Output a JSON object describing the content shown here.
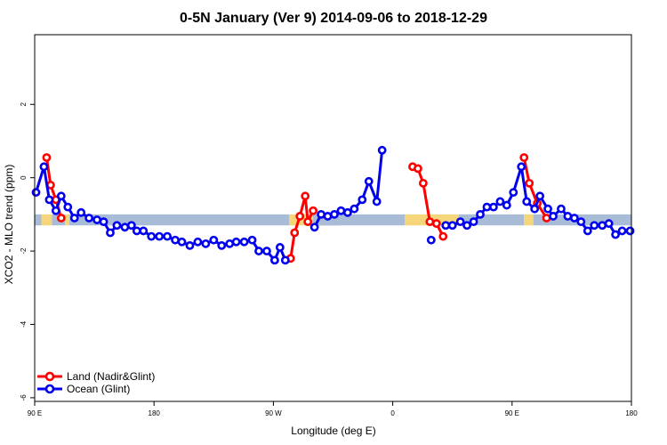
{
  "chart_data": {
    "type": "line",
    "title": "0-5N January (Ver 9)   2014-09-06 to 2018-12-29",
    "xlabel": "Longitude (deg E)",
    "ylabel": "XCO2 - MLO trend (ppm)",
    "xlim": [
      90,
      540
    ],
    "ylim": [
      -6.1,
      3.9
    ],
    "x_ticks": [
      {
        "value": 90,
        "label": "90 E"
      },
      {
        "value": 180,
        "label": "180"
      },
      {
        "value": 270,
        "label": "90 W"
      },
      {
        "value": 360,
        "label": "0"
      },
      {
        "value": 450,
        "label": "90 E"
      },
      {
        "value": 540,
        "label": "180"
      }
    ],
    "y_ticks": [
      {
        "value": -6,
        "label": "-6"
      },
      {
        "value": -4,
        "label": "-4"
      },
      {
        "value": -2,
        "label": "-2"
      },
      {
        "value": 0,
        "label": "0"
      },
      {
        "value": 2,
        "label": "2"
      }
    ],
    "background_band": {
      "y_range": [
        -1.3,
        -1.0
      ],
      "segments": [
        {
          "x_range": [
            90,
            95
          ],
          "color": "#a8bcd8"
        },
        {
          "x_range": [
            95,
            103
          ],
          "color": "#f5d67a"
        },
        {
          "x_range": [
            103,
            113
          ],
          "color": "#a8bcd8"
        },
        {
          "x_range": [
            113,
            116
          ],
          "color": "#f5d67a"
        },
        {
          "x_range": [
            116,
            282
          ],
          "color": "#a8bcd8"
        },
        {
          "x_range": [
            282,
            320
          ],
          "color": "#f5d67a"
        },
        {
          "x_range": [
            320,
            300
          ],
          "color": "#a8bcd8"
        },
        {
          "x_range": [
            300,
            369
          ],
          "color": "#a8bcd8"
        },
        {
          "x_range": [
            369,
            410
          ],
          "color": "#f5d67a"
        },
        {
          "x_range": [
            410,
            459
          ],
          "color": "#a8bcd8"
        },
        {
          "x_range": [
            459,
            466
          ],
          "color": "#f5d67a"
        },
        {
          "x_range": [
            466,
            540
          ],
          "color": "#a8bcd8"
        }
      ]
    },
    "legend_position": "bottom-left",
    "series": [
      {
        "name": "Land (Nadir&Glint)",
        "color": "#ff0000",
        "segments": [
          [
            [
              99,
              0.55
            ],
            [
              102,
              -0.2
            ],
            [
              106,
              -0.6
            ],
            [
              110,
              -1.1
            ]
          ],
          [
            [
              283,
              -2.2
            ],
            [
              286,
              -1.5
            ],
            [
              290,
              -1.05
            ],
            [
              294,
              -0.5
            ],
            [
              296,
              -1.2
            ],
            [
              300,
              -0.9
            ]
          ],
          [
            [
              375,
              0.3
            ],
            [
              379,
              0.25
            ],
            [
              383,
              -0.15
            ],
            [
              388,
              -1.2
            ],
            [
              393,
              -1.25
            ],
            [
              398,
              -1.6
            ]
          ],
          [
            [
              459,
              0.55
            ],
            [
              463,
              -0.15
            ],
            [
              469,
              -0.7
            ],
            [
              476,
              -1.1
            ]
          ]
        ]
      },
      {
        "name": "Ocean (Glint)",
        "color": "#0000ee",
        "segments": [
          [
            [
              91,
              -0.4
            ],
            [
              97,
              0.3
            ],
            [
              101,
              -0.6
            ],
            [
              106,
              -0.9
            ],
            [
              110,
              -0.5
            ],
            [
              115,
              -0.8
            ],
            [
              120,
              -1.1
            ],
            [
              125,
              -0.95
            ],
            [
              131,
              -1.1
            ],
            [
              137,
              -1.15
            ],
            [
              142,
              -1.2
            ],
            [
              147,
              -1.5
            ],
            [
              152,
              -1.3
            ],
            [
              158,
              -1.35
            ],
            [
              163,
              -1.3
            ],
            [
              167,
              -1.45
            ],
            [
              172,
              -1.45
            ],
            [
              178,
              -1.6
            ],
            [
              184,
              -1.6
            ],
            [
              190,
              -1.6
            ],
            [
              196,
              -1.7
            ],
            [
              201,
              -1.75
            ],
            [
              207,
              -1.85
            ],
            [
              213,
              -1.75
            ],
            [
              219,
              -1.8
            ],
            [
              225,
              -1.7
            ],
            [
              231,
              -1.85
            ],
            [
              237,
              -1.8
            ],
            [
              242,
              -1.75
            ],
            [
              248,
              -1.75
            ],
            [
              254,
              -1.7
            ],
            [
              259,
              -2.0
            ],
            [
              265,
              -2.0
            ],
            [
              271,
              -2.25
            ],
            [
              275,
              -1.9
            ],
            [
              279,
              -2.25
            ]
          ],
          [
            [
              301,
              -1.35
            ],
            [
              306,
              -1.0
            ],
            [
              311,
              -1.05
            ],
            [
              316,
              -1.0
            ],
            [
              321,
              -0.9
            ],
            [
              326,
              -0.95
            ],
            [
              331,
              -0.85
            ],
            [
              337,
              -0.6
            ],
            [
              342,
              -0.1
            ],
            [
              348,
              -0.65
            ],
            [
              352,
              0.75
            ]
          ],
          [
            [
              389,
              -1.7
            ]
          ],
          [
            [
              400,
              -1.3
            ],
            [
              405,
              -1.3
            ],
            [
              411,
              -1.2
            ],
            [
              416,
              -1.3
            ],
            [
              421,
              -1.2
            ],
            [
              426,
              -1.0
            ],
            [
              431,
              -0.8
            ],
            [
              436,
              -0.8
            ],
            [
              441,
              -0.65
            ],
            [
              446,
              -0.75
            ],
            [
              451,
              -0.4
            ],
            [
              457,
              0.3
            ],
            [
              461,
              -0.65
            ],
            [
              467,
              -0.85
            ],
            [
              471,
              -0.5
            ],
            [
              477,
              -0.85
            ],
            [
              481,
              -1.05
            ],
            [
              487,
              -0.85
            ],
            [
              492,
              -1.05
            ],
            [
              497,
              -1.1
            ],
            [
              502,
              -1.2
            ],
            [
              507,
              -1.45
            ],
            [
              512,
              -1.3
            ],
            [
              518,
              -1.3
            ],
            [
              523,
              -1.25
            ],
            [
              528,
              -1.55
            ],
            [
              533,
              -1.45
            ],
            [
              539,
              -1.45
            ]
          ]
        ]
      }
    ]
  }
}
